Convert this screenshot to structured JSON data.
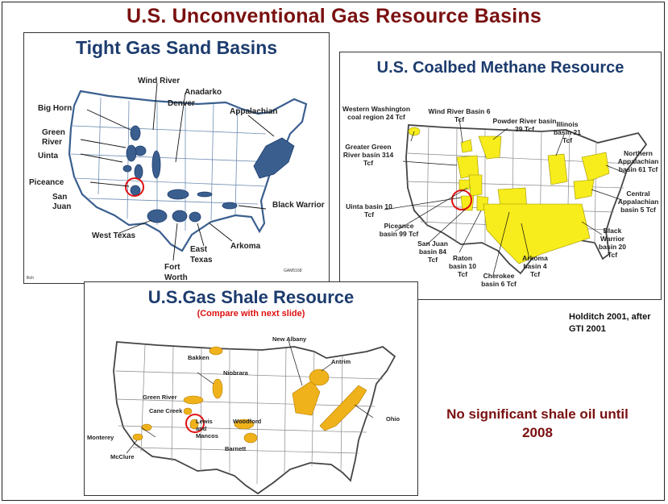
{
  "slide": {
    "title": "U.S. Unconventional Gas Resource Basins"
  },
  "tight_gas": {
    "title": "Tight Gas Sand Basins",
    "labels": {
      "wind_river": "Wind River",
      "anadarko": "Anadarko",
      "denver": "Denver",
      "big_horn": "Big Horn",
      "appalachian": "Appalachian",
      "green_river": "Green River",
      "uinta": "Uinta",
      "piceance": "Piceance",
      "san_juan": "San Juan",
      "black_warrior": "Black Warrior",
      "west_texas": "West Texas",
      "arkoma": "Arkoma",
      "east_texas": "East Texas",
      "fort_worth": "Fort Worth"
    },
    "corner_code": "lltch",
    "ref_code": "GAM5168"
  },
  "coalbed": {
    "title": "U.S. Coalbed Methane Resource",
    "labels": {
      "western_washington": "Western Washington coal region 24 Tcf",
      "wind_river": "Wind River Basin 6 Tcf",
      "powder_river": "Powder River basin 39 Tcf",
      "illinois": "Illinois basin 21 Tcf",
      "greater_green_river": "Greater Green River basin 314 Tcf",
      "northern_appalachian": "Northern Appalachian basin 61 Tcf",
      "central_appalachian": "Central Appalachian basin 5 Tcf",
      "uinta": "Uinta basin 10 Tcf",
      "black_warrior": "Black Warrior basin 20 Tcf",
      "piceance": "Piceance basin 99 Tcf",
      "san_juan": "San Juan basin 84 Tcf",
      "raton": "Raton basin 10 Tcf",
      "arkoma": "Arkoma basin 4 Tcf",
      "cherokee": "Cherokee basin 6 Tcf"
    }
  },
  "shale": {
    "title": "U.S.Gas Shale Resource",
    "subtitle": "(Compare with next slide)",
    "labels": {
      "new_albany": "New Albany",
      "bakken": "Bakken",
      "antrim": "Antrim",
      "niobrara": "Niobrara",
      "green_river": "Green River",
      "cane_creek": "Cane Creek",
      "lewis_mancos": "Lewis and Mancos",
      "woodford": "Woodford",
      "ohio": "Ohio",
      "monterey": "Monterey",
      "barnett": "Barnett",
      "mcclure": "McClure"
    }
  },
  "citation": "Holditch 2001, after GTI 2001",
  "callout": "No significant shale oil until 2008",
  "colors": {
    "title_red": "#7a1010",
    "panel_blue": "#1d3c6e",
    "basin_blue": "#3a5f8f",
    "coal_yellow": "#f7ec1c",
    "shale_orange": "#f0b21b",
    "circle_red": "#e01010"
  }
}
